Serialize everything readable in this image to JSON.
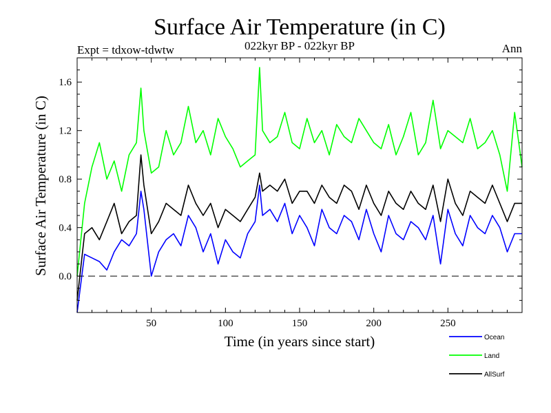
{
  "chart_data": {
    "type": "line",
    "title": "Surface Air Temperature (in C)",
    "subtitle_left": "Expt = tdxow-tdwtw",
    "subtitle_center": "022kyr BP - 022kyr BP",
    "subtitle_right": "Ann",
    "xlabel": "Time (in years since start)",
    "ylabel": "Surface Air Temperature (in C)",
    "xlim": [
      0,
      300
    ],
    "ylim": [
      -0.3,
      1.8
    ],
    "x_ticks": [
      50,
      100,
      150,
      200,
      250
    ],
    "x_tick_labels": [
      "50",
      "100",
      "150",
      "200",
      "250"
    ],
    "y_ticks": [
      0.0,
      0.4,
      0.8,
      1.2,
      1.6
    ],
    "y_tick_labels": [
      "0.0",
      "0.4",
      "0.8",
      "1.2",
      "1.6"
    ],
    "zero_line": 0.0,
    "legend_position": "bottom-right",
    "x": [
      0,
      5,
      10,
      15,
      20,
      25,
      30,
      35,
      40,
      43,
      45,
      50,
      55,
      60,
      65,
      70,
      75,
      80,
      85,
      90,
      95,
      100,
      105,
      110,
      115,
      120,
      123,
      125,
      130,
      135,
      140,
      145,
      150,
      155,
      160,
      165,
      170,
      175,
      180,
      185,
      190,
      195,
      200,
      205,
      210,
      215,
      220,
      225,
      230,
      235,
      240,
      245,
      250,
      255,
      260,
      265,
      270,
      275,
      280,
      285,
      290,
      295,
      300
    ],
    "series": [
      {
        "name": "Ocean",
        "color": "#0000ff",
        "values": [
          -0.3,
          0.18,
          0.15,
          0.12,
          0.05,
          0.2,
          0.3,
          0.25,
          0.35,
          0.7,
          0.55,
          0.0,
          0.2,
          0.3,
          0.35,
          0.25,
          0.5,
          0.4,
          0.2,
          0.35,
          0.1,
          0.3,
          0.2,
          0.15,
          0.35,
          0.45,
          0.75,
          0.5,
          0.55,
          0.45,
          0.6,
          0.35,
          0.5,
          0.4,
          0.25,
          0.55,
          0.4,
          0.35,
          0.5,
          0.45,
          0.3,
          0.55,
          0.35,
          0.2,
          0.5,
          0.35,
          0.3,
          0.45,
          0.4,
          0.3,
          0.5,
          0.1,
          0.55,
          0.35,
          0.25,
          0.5,
          0.4,
          0.35,
          0.5,
          0.4,
          0.2,
          0.35,
          0.35
        ]
      },
      {
        "name": "Land",
        "color": "#00ff00",
        "values": [
          0.0,
          0.6,
          0.9,
          1.1,
          0.8,
          0.95,
          0.7,
          1.0,
          1.1,
          1.55,
          1.2,
          0.85,
          0.9,
          1.2,
          1.0,
          1.1,
          1.4,
          1.1,
          1.2,
          1.0,
          1.3,
          1.15,
          1.05,
          0.9,
          0.95,
          1.0,
          1.72,
          1.2,
          1.1,
          1.15,
          1.35,
          1.1,
          1.05,
          1.3,
          1.1,
          1.2,
          1.0,
          1.25,
          1.15,
          1.1,
          1.3,
          1.2,
          1.1,
          1.05,
          1.25,
          1.0,
          1.15,
          1.35,
          1.0,
          1.1,
          1.45,
          1.05,
          1.2,
          1.15,
          1.1,
          1.3,
          1.05,
          1.1,
          1.2,
          1.0,
          0.7,
          1.35,
          0.9
        ]
      },
      {
        "name": "AllSurf",
        "color": "#000000",
        "values": [
          -0.2,
          0.35,
          0.4,
          0.3,
          0.45,
          0.6,
          0.35,
          0.45,
          0.5,
          1.0,
          0.75,
          0.35,
          0.45,
          0.6,
          0.55,
          0.5,
          0.75,
          0.6,
          0.5,
          0.6,
          0.4,
          0.55,
          0.5,
          0.45,
          0.55,
          0.65,
          0.85,
          0.7,
          0.75,
          0.7,
          0.8,
          0.6,
          0.7,
          0.7,
          0.6,
          0.75,
          0.65,
          0.6,
          0.75,
          0.7,
          0.55,
          0.75,
          0.6,
          0.5,
          0.7,
          0.6,
          0.55,
          0.7,
          0.6,
          0.55,
          0.75,
          0.45,
          0.8,
          0.6,
          0.5,
          0.7,
          0.65,
          0.6,
          0.75,
          0.6,
          0.45,
          0.6,
          0.6
        ]
      }
    ]
  }
}
